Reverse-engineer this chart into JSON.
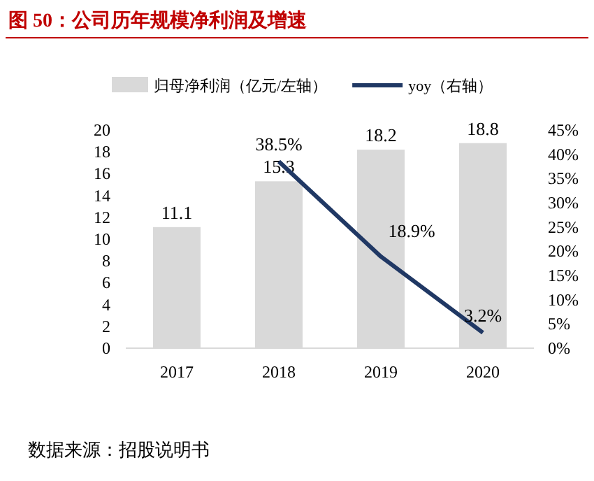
{
  "chart_data": {
    "type": "bar",
    "title": "图 50：公司历年规模净利润及增速",
    "categories": [
      "2017",
      "2018",
      "2019",
      "2020"
    ],
    "series": [
      {
        "name": "归母净利润（亿元/左轴）",
        "color": "#d9d9d9",
        "values": [
          11.1,
          15.3,
          18.2,
          18.8
        ]
      },
      {
        "name": "yoy（右轴）",
        "type": "line",
        "axis": "y2",
        "color": "#203864",
        "values": [
          null,
          38.5,
          18.9,
          3.2
        ],
        "value_labels": [
          null,
          "38.5%",
          "18.9%",
          "3.2%"
        ]
      }
    ],
    "ylim": [
      0,
      20
    ],
    "yticks": [
      0,
      2,
      4,
      6,
      8,
      10,
      12,
      14,
      16,
      18,
      20
    ],
    "y2lim": [
      0,
      45
    ],
    "y2ticks": [
      {
        "value": 0,
        "label": "0%"
      },
      {
        "value": 5,
        "label": "5%"
      },
      {
        "value": 10,
        "label": "10%"
      },
      {
        "value": 15,
        "label": "15%"
      },
      {
        "value": 20,
        "label": "20%"
      },
      {
        "value": 25,
        "label": "25%"
      },
      {
        "value": 30,
        "label": "30%"
      },
      {
        "value": 35,
        "label": "35%"
      },
      {
        "value": 40,
        "label": "40%"
      },
      {
        "value": 45,
        "label": "45%"
      }
    ],
    "data_labels": true,
    "legend": "top",
    "grid": false,
    "annotations": [
      "数据来源：招股说明书"
    ]
  }
}
